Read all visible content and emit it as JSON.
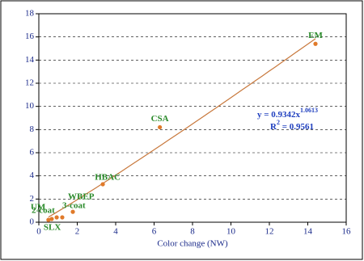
{
  "chart_data": {
    "type": "scatter",
    "x_label": "Color change (NW)",
    "labels": [
      "SLX",
      "UM",
      "2-coat",
      "3-coat",
      "WBEP",
      "HBAC",
      "CSA",
      "EM"
    ],
    "x": [
      0.5,
      0.67,
      0.93,
      1.22,
      1.77,
      3.33,
      6.3,
      14.4
    ],
    "y": [
      0.2,
      0.28,
      0.42,
      0.42,
      0.9,
      3.28,
      8.2,
      15.4
    ],
    "color": "#e07a2a",
    "trendline": {
      "a": 0.9342,
      "b": 1.0613,
      "color": "#c8783c",
      "equation": "y = 0.9342x",
      "exponent": "1.0613",
      "r2_prefix": "R",
      "r2_sup": "2",
      "r2_text": " = 0.9561"
    },
    "xlim": [
      0,
      16
    ],
    "xticks": [
      0,
      2,
      4,
      6,
      8,
      10,
      12,
      14,
      16
    ],
    "ylim": [
      0,
      18
    ],
    "yticks": [
      0,
      2,
      4,
      6,
      8,
      10,
      12,
      14,
      16,
      18
    ],
    "grid": true
  }
}
